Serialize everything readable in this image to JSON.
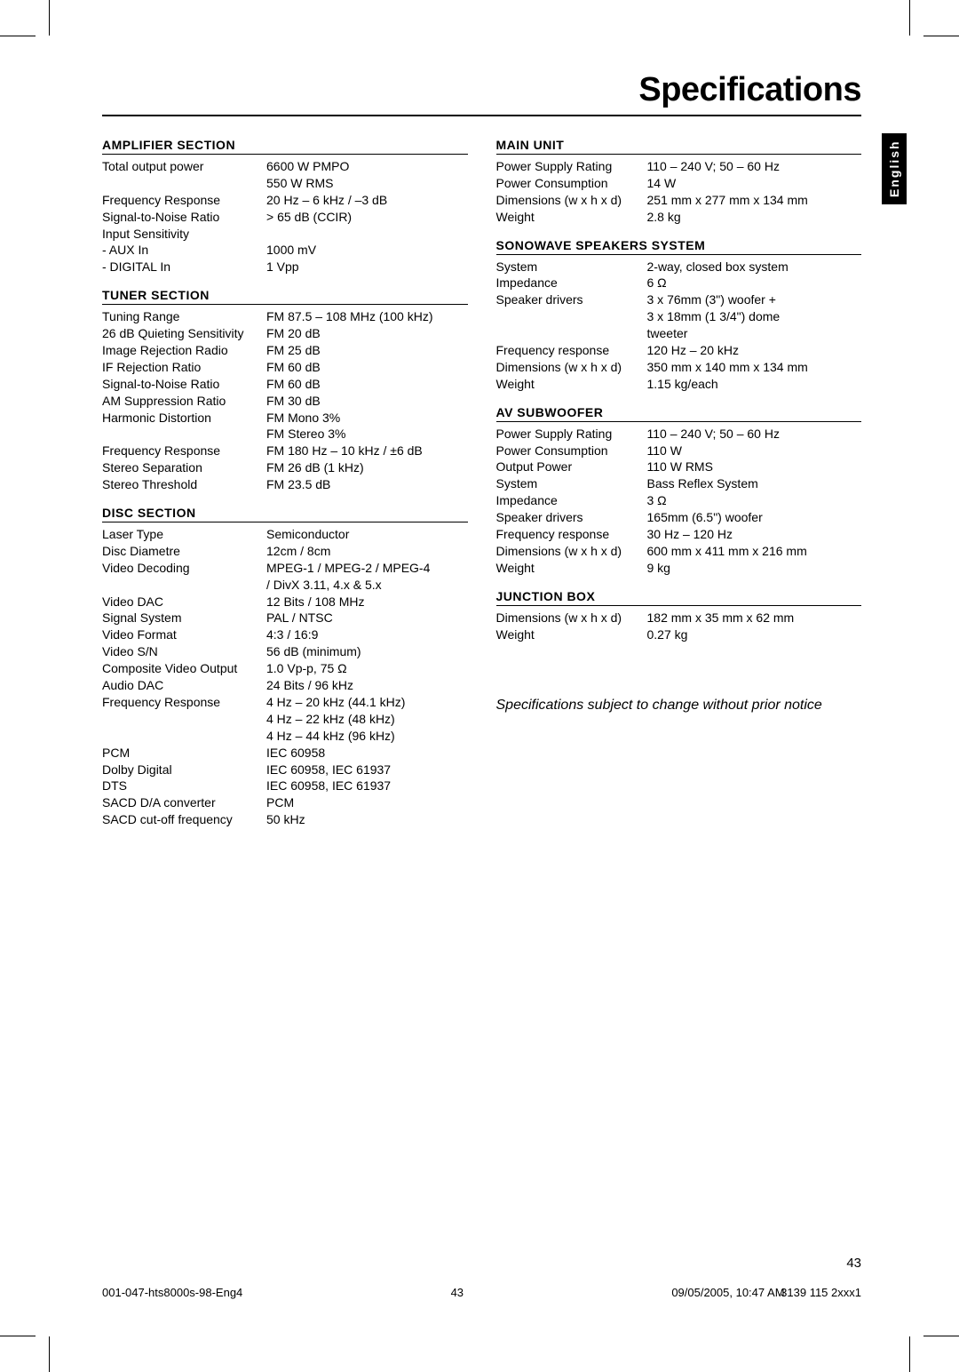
{
  "title": "Specifications",
  "language_tab": "English",
  "page_number": "43",
  "footer": {
    "left": "001-047-hts8000s-98-Eng4",
    "mid": "43",
    "right_date": "09/05/2005, 10:47 AM",
    "right_code": "3139 115 2xxx1"
  },
  "notice": "Specifications subject to change without prior notice",
  "left_sections": [
    {
      "title": "Amplifier Section",
      "rows": [
        {
          "label": "Total output power",
          "value": "6600 W PMPO"
        },
        {
          "label": "",
          "value": "550 W RMS"
        },
        {
          "label": "Frequency Response",
          "value": "20 Hz – 6 kHz / –3 dB"
        },
        {
          "label": "Signal-to-Noise Ratio",
          "value": "> 65 dB (CCIR)"
        },
        {
          "label": "Input Sensitivity",
          "value": ""
        },
        {
          "label": "- AUX In",
          "value": "1000 mV"
        },
        {
          "label": "- DIGITAL In",
          "value": "1 Vpp"
        }
      ]
    },
    {
      "title": "Tuner Section",
      "rows": [
        {
          "label": "Tuning Range",
          "value": "FM 87.5 – 108 MHz (100 kHz)"
        },
        {
          "label": "26 dB Quieting Sensitivity",
          "value": "FM 20 dB"
        },
        {
          "label": "Image Rejection Radio",
          "value": "FM 25 dB"
        },
        {
          "label": "IF Rejection Ratio",
          "value": "FM 60 dB"
        },
        {
          "label": "Signal-to-Noise Ratio",
          "value": "FM 60 dB"
        },
        {
          "label": "AM Suppression Ratio",
          "value": "FM 30 dB"
        },
        {
          "label": "Harmonic Distortion",
          "value": "FM Mono 3%"
        },
        {
          "label": "",
          "value": "FM Stereo 3%"
        },
        {
          "label": "Frequency Response",
          "value": "FM 180 Hz – 10 kHz / ±6 dB"
        },
        {
          "label": "Stereo Separation",
          "value": "FM 26 dB (1 kHz)"
        },
        {
          "label": "Stereo Threshold",
          "value": "FM 23.5 dB"
        }
      ]
    },
    {
      "title": "Disc Section",
      "rows": [
        {
          "label": "Laser Type",
          "value": "Semiconductor"
        },
        {
          "label": "Disc Diametre",
          "value": "12cm / 8cm"
        },
        {
          "label": "Video Decoding",
          "value": "MPEG-1 / MPEG-2 / MPEG-4"
        },
        {
          "label": "",
          "value": "/ DivX 3.11, 4.x & 5.x"
        },
        {
          "label": "Video DAC",
          "value": "12 Bits / 108 MHz"
        },
        {
          "label": "Signal System",
          "value": "PAL / NTSC"
        },
        {
          "label": "Video Format",
          "value": "4:3 / 16:9"
        },
        {
          "label": "Video S/N",
          "value": "56 dB (minimum)"
        },
        {
          "label": "Composite Video Output",
          "value": "1.0 Vp-p, 75 Ω"
        },
        {
          "label": "Audio DAC",
          "value": "24 Bits / 96 kHz"
        },
        {
          "label": "Frequency Response",
          "value": "4 Hz – 20 kHz (44.1 kHz)"
        },
        {
          "label": "",
          "value": "4 Hz – 22 kHz (48 kHz)"
        },
        {
          "label": "",
          "value": "4 Hz – 44 kHz (96 kHz)"
        },
        {
          "label": "PCM",
          "value": "IEC 60958"
        },
        {
          "label": "Dolby Digital",
          "value": "IEC 60958, IEC 61937"
        },
        {
          "label": "DTS",
          "value": "IEC 60958, IEC 61937"
        },
        {
          "label": "SACD D/A converter",
          "value": "PCM"
        },
        {
          "label": "SACD cut-off frequency",
          "value": "50 kHz"
        }
      ]
    }
  ],
  "right_sections": [
    {
      "title": "Main Unit",
      "rows": [
        {
          "label": "Power Supply Rating",
          "value": "110 – 240 V; 50 – 60 Hz"
        },
        {
          "label": "Power Consumption",
          "value": "14 W"
        },
        {
          "label": "Dimensions (w x h x d)",
          "value": "251 mm x 277 mm x 134 mm"
        },
        {
          "label": "Weight",
          "value": "2.8 kg"
        }
      ]
    },
    {
      "title": "Sonowave Speakers System",
      "rows": [
        {
          "label": "System",
          "value": "2-way, closed box system"
        },
        {
          "label": "Impedance",
          "value": "6 Ω"
        },
        {
          "label": "Speaker drivers",
          "value": "3 x 76mm (3\") woofer +"
        },
        {
          "label": "",
          "value": "3 x 18mm (1 3/4\") dome"
        },
        {
          "label": "",
          "value": "tweeter"
        },
        {
          "label": "Frequency response",
          "value": "120 Hz – 20 kHz"
        },
        {
          "label": "Dimensions (w x h x d)",
          "value": "350 mm x 140 mm x 134 mm"
        },
        {
          "label": "Weight",
          "value": "1.15 kg/each"
        }
      ]
    },
    {
      "title": "AV Subwoofer",
      "rows": [
        {
          "label": "Power Supply Rating",
          "value": "110 – 240 V; 50 – 60 Hz"
        },
        {
          "label": "Power Consumption",
          "value": "110 W"
        },
        {
          "label": "Output Power",
          "value": "110 W RMS"
        },
        {
          "label": "System",
          "value": "Bass Reflex System"
        },
        {
          "label": "Impedance",
          "value": "3 Ω"
        },
        {
          "label": "Speaker drivers",
          "value": "165mm (6.5\") woofer"
        },
        {
          "label": "Frequency response",
          "value": "30 Hz – 120 Hz"
        },
        {
          "label": "Dimensions (w x h x d)",
          "value": "600 mm x 411 mm x 216 mm"
        },
        {
          "label": "Weight",
          "value": "9 kg"
        }
      ]
    },
    {
      "title": "Junction Box",
      "rows": [
        {
          "label": "Dimensions (w x h x d)",
          "value": "182 mm x 35 mm x 62 mm"
        },
        {
          "label": "Weight",
          "value": "0.27 kg"
        }
      ]
    }
  ]
}
